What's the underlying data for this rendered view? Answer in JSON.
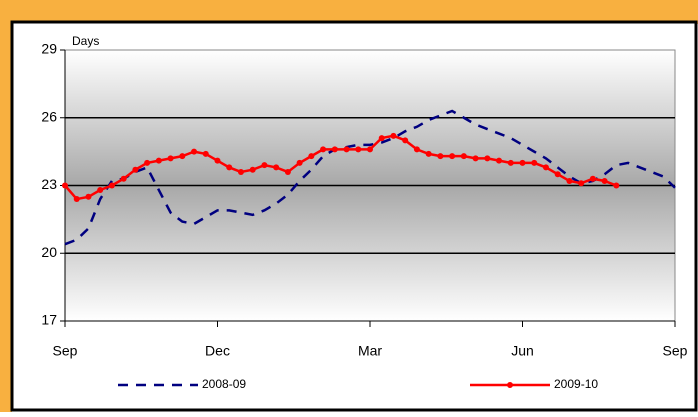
{
  "chart_data": {
    "type": "line",
    "ylabel": "Days",
    "x": [
      0,
      1,
      2,
      3,
      4,
      5,
      6,
      7,
      8,
      9,
      10,
      11,
      12,
      13,
      14,
      15,
      16,
      17,
      18,
      19,
      20,
      21,
      22,
      23,
      24,
      25,
      26,
      27,
      28,
      29,
      30,
      31,
      32,
      33,
      34,
      35,
      36,
      37,
      38,
      39,
      40,
      41,
      42,
      43,
      44,
      45,
      46,
      47,
      48,
      49,
      50,
      51,
      52
    ],
    "xlim": [
      0,
      52
    ],
    "xticks": [
      {
        "value": 0,
        "label": "Sep"
      },
      {
        "value": 13,
        "label": "Dec"
      },
      {
        "value": 26,
        "label": "Mar"
      },
      {
        "value": 39,
        "label": "Jun"
      },
      {
        "value": 52,
        "label": "Sep"
      }
    ],
    "ylim": [
      17,
      29
    ],
    "yticks": [
      17,
      20,
      23,
      26,
      29
    ],
    "grid": true,
    "series": [
      {
        "name": "2008-09",
        "color": "#000080",
        "style": "dashed",
        "values": [
          20.4,
          20.6,
          21.1,
          22.4,
          23.2,
          23.3,
          23.6,
          23.8,
          22.8,
          21.8,
          21.4,
          21.3,
          21.6,
          21.9,
          21.9,
          21.8,
          21.7,
          21.9,
          22.2,
          22.6,
          23.2,
          23.7,
          24.3,
          24.6,
          24.7,
          24.8,
          24.8,
          24.9,
          25.1,
          25.4,
          25.6,
          25.9,
          26.1,
          26.3,
          26.0,
          25.7,
          25.5,
          25.3,
          25.1,
          24.8,
          24.5,
          24.2,
          23.8,
          23.4,
          23.1,
          23.2,
          23.5,
          23.9,
          24.0,
          23.8,
          23.6,
          23.4,
          22.9
        ]
      },
      {
        "name": "2009-10",
        "color": "#ff0000",
        "style": "solid",
        "values": [
          23.0,
          22.4,
          22.5,
          22.8,
          23.0,
          23.3,
          23.7,
          24.0,
          24.1,
          24.2,
          24.3,
          24.5,
          24.4,
          24.1,
          23.8,
          23.6,
          23.7,
          23.9,
          23.8,
          23.6,
          24.0,
          24.3,
          24.6,
          24.6,
          24.6,
          24.6,
          24.6,
          25.1,
          25.2,
          25.0,
          24.6,
          24.4,
          24.3,
          24.3,
          24.3,
          24.2,
          24.2,
          24.1,
          24.0,
          24.0,
          24.0,
          23.8,
          23.5,
          23.2,
          23.1,
          23.3,
          23.2,
          23.0,
          null,
          null,
          null,
          null,
          null
        ]
      }
    ]
  }
}
